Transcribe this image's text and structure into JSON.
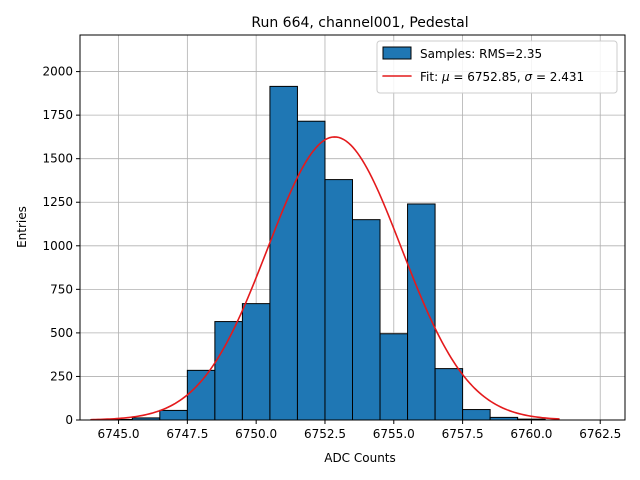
{
  "chart_data": {
    "type": "bar",
    "title": "Run 664, channel001, Pedestal",
    "xlabel": "ADC Counts",
    "ylabel": "Entries",
    "xlim": [
      6743.6,
      6763.4
    ],
    "ylim": [
      0,
      2210
    ],
    "xticks": [
      6745.0,
      6747.5,
      6750.0,
      6752.5,
      6755.0,
      6757.5,
      6760.0,
      6762.5
    ],
    "xtick_labels": [
      "6745.0",
      "6747.5",
      "6750.0",
      "6752.5",
      "6755.0",
      "6757.5",
      "6760.0",
      "6762.5"
    ],
    "yticks": [
      0,
      250,
      500,
      750,
      1000,
      1250,
      1500,
      1750,
      2000
    ],
    "ytick_labels": [
      "0",
      "250",
      "500",
      "750",
      "1000",
      "1250",
      "1500",
      "1750",
      "2000"
    ],
    "grid": true,
    "legend_position": "top-right",
    "histogram": {
      "name": "Samples: RMS=2.35",
      "color": "#1f77b4",
      "bin_edges": [
        6744.5,
        6745.5,
        6746.5,
        6747.5,
        6748.5,
        6749.5,
        6750.5,
        6751.5,
        6752.5,
        6753.5,
        6754.5,
        6755.5,
        6756.5,
        6757.5,
        6758.5,
        6759.5,
        6760.5
      ],
      "counts": [
        3,
        12,
        55,
        285,
        565,
        668,
        1915,
        1715,
        1380,
        1150,
        495,
        1240,
        295,
        60,
        15,
        5
      ]
    },
    "fit": {
      "name_prefix": "Fit: ",
      "name_rest": " = 6752.85, ",
      "name_rest2": " = 2.431",
      "mu_symbol": "μ",
      "sigma_symbol": "σ",
      "color": "#e41a1c",
      "mu": 6752.85,
      "sigma": 2.431,
      "amplitude": 1625,
      "x_range": [
        6744.0,
        6761.0
      ]
    }
  }
}
